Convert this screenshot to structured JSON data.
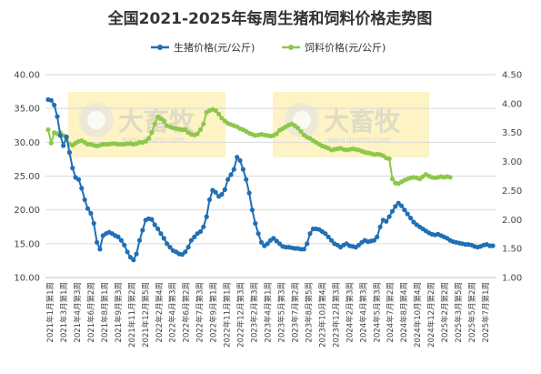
{
  "chart_data": {
    "type": "line",
    "title": "全国2021-2025年每周生猪和饲料价格走势图",
    "series": [
      {
        "name": "生猪价格(元/公斤)",
        "axis": "left",
        "color": "#1f6fb5",
        "values": [
          36.3,
          36.2,
          35.5,
          33.8,
          31.0,
          29.5,
          30.8,
          28.5,
          26.2,
          24.8,
          24.5,
          23.2,
          21.5,
          20.2,
          19.5,
          18.0,
          15.2,
          14.2,
          16.2,
          16.5,
          16.7,
          16.5,
          16.2,
          16.0,
          15.5,
          14.8,
          13.8,
          13.0,
          12.6,
          13.5,
          15.5,
          17.0,
          18.5,
          18.7,
          18.6,
          17.8,
          17.2,
          16.5,
          15.8,
          15.0,
          14.5,
          14.0,
          13.8,
          13.5,
          13.4,
          13.8,
          14.5,
          15.5,
          16.0,
          16.5,
          16.8,
          17.5,
          19.0,
          21.5,
          22.9,
          22.6,
          22.0,
          22.3,
          23.0,
          24.5,
          25.2,
          26.0,
          27.8,
          27.3,
          26.0,
          24.5,
          22.5,
          20.0,
          18.0,
          16.5,
          15.2,
          14.7,
          15.0,
          15.5,
          15.8,
          15.4,
          15.0,
          14.6,
          14.5,
          14.5,
          14.4,
          14.3,
          14.3,
          14.2,
          14.2,
          15.0,
          16.5,
          17.2,
          17.2,
          17.1,
          16.8,
          16.5,
          16.0,
          15.5,
          15.0,
          14.8,
          14.5,
          14.8,
          15.0,
          14.7,
          14.6,
          14.5,
          14.8,
          15.2,
          15.5,
          15.3,
          15.4,
          15.5,
          16.0,
          17.5,
          18.5,
          18.3,
          19.0,
          19.8,
          20.5,
          21.0,
          20.6,
          20.0,
          19.4,
          18.8,
          18.2,
          17.8,
          17.5,
          17.2,
          16.9,
          16.6,
          16.4,
          16.3,
          16.4,
          16.2,
          16.0,
          15.8,
          15.5,
          15.3,
          15.2,
          15.1,
          15.0,
          14.9,
          14.9,
          14.8,
          14.6,
          14.5,
          14.6,
          14.8,
          14.9,
          14.7,
          14.7
        ]
      },
      {
        "name": "饲料价格(元/公斤)",
        "axis": "right",
        "color": "#8cc84b",
        "values": [
          3.55,
          3.32,
          3.5,
          3.48,
          3.5,
          3.45,
          3.4,
          3.3,
          3.28,
          3.32,
          3.35,
          3.36,
          3.33,
          3.3,
          3.3,
          3.28,
          3.27,
          3.28,
          3.3,
          3.3,
          3.3,
          3.31,
          3.31,
          3.3,
          3.3,
          3.3,
          3.31,
          3.31,
          3.3,
          3.31,
          3.33,
          3.33,
          3.35,
          3.4,
          3.5,
          3.65,
          3.77,
          3.74,
          3.7,
          3.62,
          3.6,
          3.58,
          3.57,
          3.56,
          3.55,
          3.55,
          3.5,
          3.47,
          3.46,
          3.48,
          3.55,
          3.65,
          3.85,
          3.88,
          3.9,
          3.88,
          3.82,
          3.75,
          3.7,
          3.66,
          3.64,
          3.62,
          3.6,
          3.57,
          3.55,
          3.52,
          3.49,
          3.47,
          3.45,
          3.46,
          3.47,
          3.46,
          3.45,
          3.44,
          3.45,
          3.48,
          3.54,
          3.57,
          3.6,
          3.63,
          3.65,
          3.62,
          3.58,
          3.52,
          3.46,
          3.42,
          3.4,
          3.36,
          3.33,
          3.3,
          3.27,
          3.25,
          3.23,
          3.2,
          3.21,
          3.22,
          3.23,
          3.21,
          3.2,
          3.21,
          3.22,
          3.21,
          3.2,
          3.18,
          3.16,
          3.15,
          3.14,
          3.12,
          3.13,
          3.12,
          3.1,
          3.06,
          3.05,
          2.7,
          2.63,
          2.62,
          2.65,
          2.68,
          2.7,
          2.72,
          2.73,
          2.72,
          2.7,
          2.74,
          2.78,
          2.75,
          2.73,
          2.72,
          2.73,
          2.74,
          2.73,
          2.74,
          2.73
        ]
      }
    ],
    "left_axis": {
      "ylim": [
        10,
        40
      ],
      "ticks": [
        "10.00",
        "15.00",
        "20.00",
        "25.00",
        "30.00",
        "35.00",
        "40.00"
      ]
    },
    "right_axis": {
      "ylim": [
        1.0,
        4.5
      ],
      "ticks": [
        "1.00",
        "1.50",
        "2.00",
        "2.50",
        "3.00",
        "3.50",
        "4.00",
        "4.50"
      ]
    },
    "x_tick_labels": [
      "2021年1月第1周",
      "2021年3月第1周",
      "2021年4月第3周",
      "2021年6月第2周",
      "2021年8月第1周",
      "2021年9月第3周",
      "2021年11月第2周",
      "2021年12月第5周",
      "2022年2月第4周",
      "2022年4月第3周",
      "2022年6月第2周",
      "2022年7月第3周",
      "2022年9月第1周",
      "2022年11月第1周",
      "2022年12月第3周",
      "2023年2月第3周",
      "2023年4月第1周",
      "2023年5月第3周",
      "2023年7月第2周",
      "2023年8月第5周",
      "2023年10月第4周",
      "2023年12月第3周",
      "2024年2月第3周",
      "2024年4月第3周",
      "2024年5月第3周",
      "2024年7月第2周",
      "2024年8月第4周",
      "2024年10月第4周",
      "2024年12月第2周",
      "2025年2月第2周",
      "2025年3月第5周",
      "2025年5月第2周",
      "2025年7月第1周"
    ],
    "grid": true,
    "legend_position": "top",
    "highlight_color": "#fdf3c4",
    "watermark": "大畜牧",
    "watermark_sub": "www.dxumu.com"
  }
}
